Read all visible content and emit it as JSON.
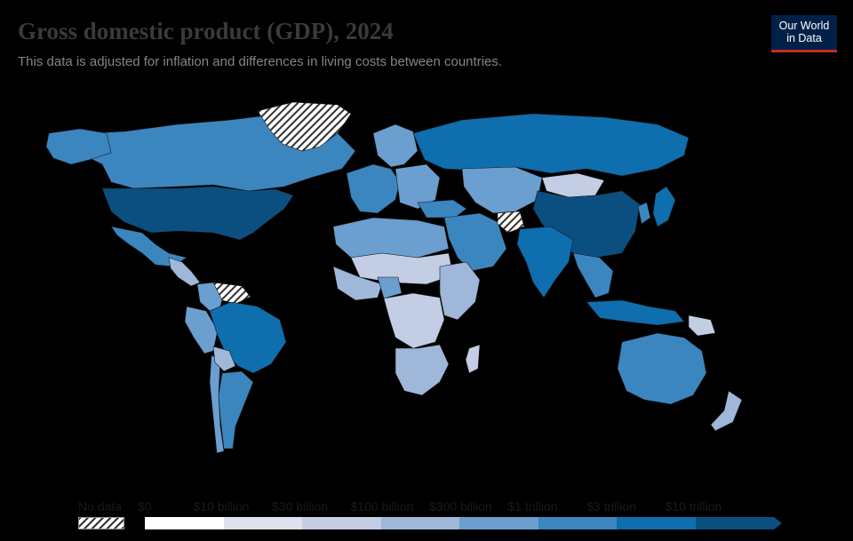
{
  "header": {
    "title": "Gross domestic product (GDP), 2024",
    "subtitle": "This data is adjusted for inflation and differences in living costs between countries."
  },
  "logo": {
    "line1": "Our World",
    "line2": "in Data"
  },
  "legend": {
    "nodata_label": "No data",
    "bins": [
      {
        "label": "$0",
        "color": "#ffffff"
      },
      {
        "label": "$10 billion",
        "color": "#dfe1ef"
      },
      {
        "label": "$30 billion",
        "color": "#c3cde4"
      },
      {
        "label": "$100 billion",
        "color": "#9fb7d9"
      },
      {
        "label": "$300 billion",
        "color": "#6a9fcf"
      },
      {
        "label": "$1 trillion",
        "color": "#3c86c0"
      },
      {
        "label": "$3 trillion",
        "color": "#0e6eae"
      },
      {
        "label": "$10 trillion",
        "color": "#0b4f80"
      }
    ]
  },
  "map_regions": [
    {
      "name": "canada",
      "bin": 5
    },
    {
      "name": "alaska-usa",
      "bin": 5
    },
    {
      "name": "greenland",
      "bin": -1
    },
    {
      "name": "usa",
      "bin": 7
    },
    {
      "name": "mexico",
      "bin": 5
    },
    {
      "name": "central-america",
      "bin": 3
    },
    {
      "name": "colombia",
      "bin": 4
    },
    {
      "name": "venezuela",
      "bin": -1
    },
    {
      "name": "peru",
      "bin": 4
    },
    {
      "name": "brazil",
      "bin": 6
    },
    {
      "name": "argentina",
      "bin": 5
    },
    {
      "name": "chile",
      "bin": 4
    },
    {
      "name": "bolivia",
      "bin": 3
    },
    {
      "name": "western-europe",
      "bin": 5
    },
    {
      "name": "scandinavia",
      "bin": 4
    },
    {
      "name": "eastern-europe",
      "bin": 4
    },
    {
      "name": "russia",
      "bin": 6
    },
    {
      "name": "turkey",
      "bin": 5
    },
    {
      "name": "middle-east",
      "bin": 5
    },
    {
      "name": "kazakhstan-central-asia",
      "bin": 4
    },
    {
      "name": "mongolia",
      "bin": 2
    },
    {
      "name": "china",
      "bin": 7
    },
    {
      "name": "india",
      "bin": 6
    },
    {
      "name": "afghanistan",
      "bin": -1
    },
    {
      "name": "southeast-asia",
      "bin": 5
    },
    {
      "name": "indonesia",
      "bin": 6
    },
    {
      "name": "japan",
      "bin": 6
    },
    {
      "name": "korea",
      "bin": 5
    },
    {
      "name": "north-africa",
      "bin": 4
    },
    {
      "name": "sahel",
      "bin": 2
    },
    {
      "name": "west-africa",
      "bin": 3
    },
    {
      "name": "nigeria",
      "bin": 4
    },
    {
      "name": "central-africa",
      "bin": 2
    },
    {
      "name": "east-africa",
      "bin": 3
    },
    {
      "name": "southern-africa",
      "bin": 3
    },
    {
      "name": "madagascar",
      "bin": 2
    },
    {
      "name": "australia",
      "bin": 5
    },
    {
      "name": "new-zealand",
      "bin": 3
    },
    {
      "name": "papua-new-guinea",
      "bin": 2
    }
  ]
}
